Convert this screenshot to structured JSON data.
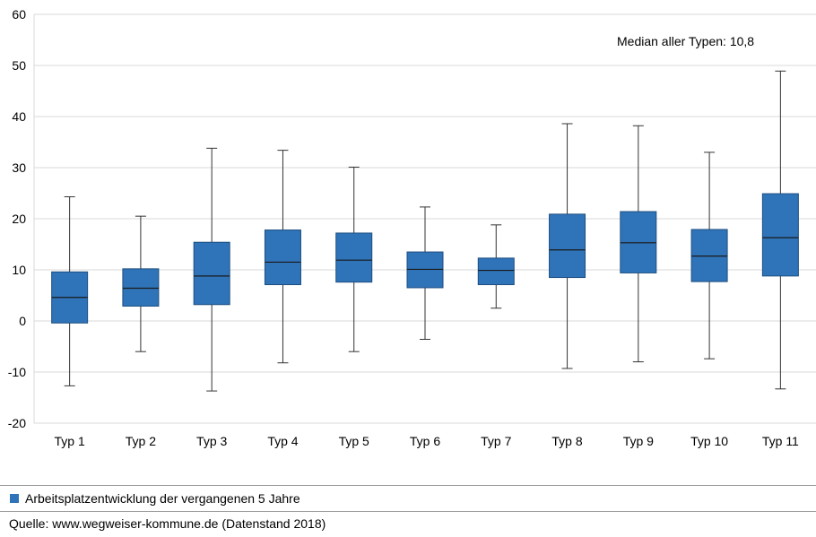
{
  "chart_data": {
    "type": "boxplot",
    "categories": [
      "Typ 1",
      "Typ 2",
      "Typ 3",
      "Typ 4",
      "Typ 5",
      "Typ 6",
      "Typ 7",
      "Typ 8",
      "Typ 9",
      "Typ 10",
      "Typ 11"
    ],
    "series": [
      {
        "name": "Arbeitsplatzentwicklung der vergangenen 5 Jahre",
        "boxes": [
          {
            "min": -12.7,
            "q1": -0.4,
            "median": 4.6,
            "q3": 9.6,
            "max": 24.3
          },
          {
            "min": -6.0,
            "q1": 2.9,
            "median": 6.4,
            "q3": 10.2,
            "max": 20.5
          },
          {
            "min": -13.7,
            "q1": 3.2,
            "median": 8.8,
            "q3": 15.4,
            "max": 33.8
          },
          {
            "min": -8.2,
            "q1": 7.1,
            "median": 11.5,
            "q3": 17.8,
            "max": 33.4
          },
          {
            "min": -6.0,
            "q1": 7.6,
            "median": 11.9,
            "q3": 17.2,
            "max": 30.1
          },
          {
            "min": -3.6,
            "q1": 6.5,
            "median": 10.1,
            "q3": 13.5,
            "max": 22.3
          },
          {
            "min": 2.5,
            "q1": 7.1,
            "median": 9.9,
            "q3": 12.3,
            "max": 18.8
          },
          {
            "min": -9.3,
            "q1": 8.5,
            "median": 13.9,
            "q3": 20.9,
            "max": 38.6
          },
          {
            "min": -8.0,
            "q1": 9.4,
            "median": 15.3,
            "q3": 21.4,
            "max": 38.2
          },
          {
            "min": -7.4,
            "q1": 7.7,
            "median": 12.7,
            "q3": 17.9,
            "max": 33.0
          },
          {
            "min": -13.3,
            "q1": 8.8,
            "median": 16.3,
            "q3": 24.9,
            "max": 48.9
          }
        ]
      }
    ],
    "ylim": [
      -20,
      60
    ],
    "yticks": [
      "-20",
      "-10",
      "0",
      "10",
      "20",
      "30",
      "40",
      "50",
      "60"
    ],
    "annotation": "Median aller Typen: 10,8",
    "grid": true,
    "legend_position": "bottom",
    "box_color": "#2f73b8",
    "box_edge_color": "#1e4f80"
  },
  "legend": {
    "label": "Arbeitsplatzentwicklung der vergangenen 5 Jahre",
    "color": "#2f73b8"
  },
  "source": "Quelle: www.wegweiser-kommune.de (Datenstand 2018)"
}
